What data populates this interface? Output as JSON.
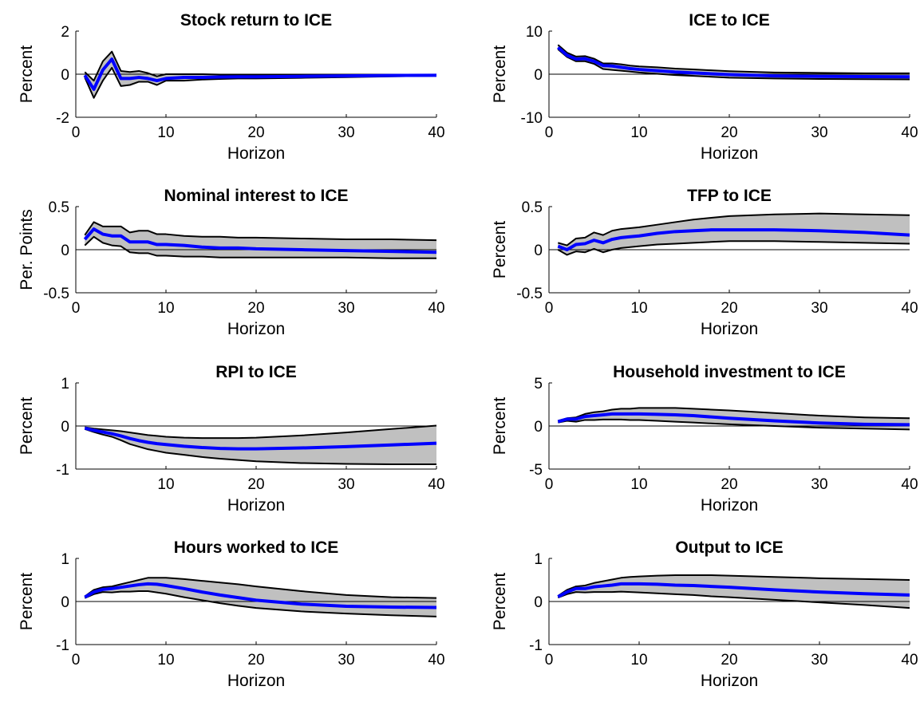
{
  "figure": {
    "background": "#ffffff",
    "band_color": "#c0c0c0",
    "bound_color": "#000000",
    "median_color": "#0000ff",
    "zero_line_color": "#000000"
  },
  "chart_data": [
    {
      "type": "line",
      "title": "Stock return to ICE",
      "xlabel": "Horizon",
      "ylabel": "Percent",
      "xlim": [
        0,
        40
      ],
      "ylim": [
        -2,
        2
      ],
      "xticks": [
        0,
        10,
        20,
        30,
        40
      ],
      "yticks": [
        -2,
        0,
        2
      ],
      "grid": false,
      "x": [
        1,
        2,
        3,
        4,
        5,
        6,
        7,
        8,
        9,
        10,
        12,
        14,
        16,
        18,
        20,
        25,
        30,
        35,
        40
      ],
      "series": [
        {
          "role": "upper",
          "values": [
            0.1,
            -0.3,
            0.6,
            1.05,
            0.15,
            0.1,
            0.15,
            0.05,
            -0.1,
            0.0,
            0.0,
            0.0,
            -0.02,
            -0.02,
            -0.02,
            -0.02,
            -0.02,
            -0.02,
            -0.02
          ]
        },
        {
          "role": "median",
          "values": [
            -0.05,
            -0.7,
            0.2,
            0.7,
            -0.2,
            -0.2,
            -0.15,
            -0.2,
            -0.3,
            -0.2,
            -0.15,
            -0.15,
            -0.13,
            -0.12,
            -0.12,
            -0.1,
            -0.08,
            -0.06,
            -0.05
          ]
        },
        {
          "role": "lower",
          "values": [
            -0.15,
            -1.1,
            -0.3,
            0.3,
            -0.55,
            -0.5,
            -0.35,
            -0.35,
            -0.5,
            -0.3,
            -0.3,
            -0.25,
            -0.22,
            -0.2,
            -0.2,
            -0.17,
            -0.14,
            -0.1,
            -0.08
          ]
        }
      ]
    },
    {
      "type": "line",
      "title": "ICE to ICE",
      "xlabel": "Horizon",
      "ylabel": "Percent",
      "xlim": [
        0,
        40
      ],
      "ylim": [
        -10,
        10
      ],
      "xticks": [
        0,
        10,
        20,
        30,
        40
      ],
      "yticks": [
        -10,
        0,
        10
      ],
      "grid": false,
      "x": [
        1,
        2,
        3,
        4,
        5,
        6,
        7,
        8,
        9,
        10,
        12,
        14,
        16,
        18,
        20,
        25,
        30,
        35,
        40
      ],
      "series": [
        {
          "role": "upper",
          "values": [
            6.8,
            5.0,
            4.1,
            4.2,
            3.6,
            2.5,
            2.5,
            2.3,
            2.0,
            1.8,
            1.6,
            1.3,
            1.1,
            0.9,
            0.7,
            0.4,
            0.3,
            0.2,
            0.2
          ]
        },
        {
          "role": "median",
          "values": [
            6.2,
            4.4,
            3.5,
            3.6,
            3.0,
            2.0,
            1.9,
            1.6,
            1.3,
            1.1,
            0.8,
            0.5,
            0.3,
            0.1,
            -0.1,
            -0.4,
            -0.5,
            -0.55,
            -0.6
          ]
        },
        {
          "role": "lower",
          "values": [
            5.8,
            4.0,
            3.0,
            3.0,
            2.4,
            1.2,
            1.0,
            0.8,
            0.6,
            0.4,
            0.1,
            -0.2,
            -0.4,
            -0.6,
            -0.8,
            -1.0,
            -1.1,
            -1.15,
            -1.2
          ]
        }
      ]
    },
    {
      "type": "line",
      "title": "Nominal interest to ICE",
      "xlabel": "Horizon",
      "ylabel": "Per. Points",
      "xlim": [
        0,
        40
      ],
      "ylim": [
        -0.5,
        0.5
      ],
      "xticks": [
        0,
        10,
        20,
        30,
        40
      ],
      "yticks": [
        -0.5,
        0,
        0.5
      ],
      "grid": false,
      "x": [
        1,
        2,
        3,
        4,
        5,
        6,
        7,
        8,
        9,
        10,
        12,
        14,
        16,
        18,
        20,
        25,
        30,
        35,
        40
      ],
      "series": [
        {
          "role": "upper",
          "values": [
            0.17,
            0.32,
            0.27,
            0.27,
            0.27,
            0.2,
            0.22,
            0.22,
            0.18,
            0.18,
            0.16,
            0.15,
            0.15,
            0.14,
            0.14,
            0.13,
            0.12,
            0.12,
            0.11
          ]
        },
        {
          "role": "median",
          "values": [
            0.12,
            0.24,
            0.18,
            0.16,
            0.16,
            0.09,
            0.09,
            0.09,
            0.06,
            0.06,
            0.05,
            0.03,
            0.02,
            0.02,
            0.01,
            0.0,
            -0.01,
            -0.02,
            -0.03
          ]
        },
        {
          "role": "lower",
          "values": [
            0.05,
            0.15,
            0.08,
            0.05,
            0.04,
            -0.03,
            -0.04,
            -0.04,
            -0.07,
            -0.07,
            -0.08,
            -0.08,
            -0.09,
            -0.09,
            -0.09,
            -0.09,
            -0.09,
            -0.1,
            -0.1
          ]
        }
      ]
    },
    {
      "type": "line",
      "title": "TFP to ICE",
      "xlabel": "Horizon",
      "ylabel": "Percent",
      "xlim": [
        0,
        40
      ],
      "ylim": [
        -0.5,
        0.5
      ],
      "xticks": [
        0,
        10,
        20,
        30,
        40
      ],
      "yticks": [
        -0.5,
        0,
        0.5
      ],
      "grid": false,
      "x": [
        1,
        2,
        3,
        4,
        5,
        6,
        7,
        8,
        9,
        10,
        12,
        14,
        16,
        18,
        20,
        25,
        30,
        35,
        40
      ],
      "series": [
        {
          "role": "upper",
          "values": [
            0.08,
            0.05,
            0.13,
            0.14,
            0.2,
            0.17,
            0.22,
            0.24,
            0.25,
            0.26,
            0.29,
            0.32,
            0.35,
            0.37,
            0.39,
            0.41,
            0.42,
            0.41,
            0.4
          ]
        },
        {
          "role": "median",
          "values": [
            0.04,
            0.0,
            0.06,
            0.07,
            0.11,
            0.08,
            0.12,
            0.14,
            0.15,
            0.16,
            0.19,
            0.21,
            0.22,
            0.23,
            0.23,
            0.23,
            0.22,
            0.2,
            0.17
          ]
        },
        {
          "role": "lower",
          "values": [
            0.0,
            -0.06,
            -0.02,
            -0.03,
            0.01,
            -0.03,
            0.0,
            0.02,
            0.03,
            0.04,
            0.06,
            0.07,
            0.08,
            0.09,
            0.1,
            0.1,
            0.09,
            0.08,
            0.07
          ]
        }
      ]
    },
    {
      "type": "line",
      "title": "RPI to ICE",
      "xlabel": "Horizon",
      "ylabel": "Percent",
      "xlim": [
        0,
        40
      ],
      "ylim": [
        -1,
        1
      ],
      "xticks": [
        10,
        20,
        30,
        40
      ],
      "yticks": [
        -1,
        0,
        1
      ],
      "grid": false,
      "x": [
        1,
        2,
        3,
        4,
        5,
        6,
        7,
        8,
        9,
        10,
        12,
        14,
        16,
        18,
        20,
        25,
        30,
        35,
        40
      ],
      "series": [
        {
          "role": "upper",
          "values": [
            -0.03,
            -0.06,
            -0.08,
            -0.1,
            -0.12,
            -0.15,
            -0.18,
            -0.21,
            -0.23,
            -0.25,
            -0.27,
            -0.28,
            -0.28,
            -0.28,
            -0.27,
            -0.22,
            -0.15,
            -0.07,
            0.01
          ]
        },
        {
          "role": "median",
          "values": [
            -0.05,
            -0.1,
            -0.14,
            -0.18,
            -0.23,
            -0.29,
            -0.34,
            -0.38,
            -0.41,
            -0.43,
            -0.47,
            -0.5,
            -0.52,
            -0.53,
            -0.53,
            -0.51,
            -0.48,
            -0.44,
            -0.4
          ]
        },
        {
          "role": "lower",
          "values": [
            -0.07,
            -0.14,
            -0.2,
            -0.25,
            -0.33,
            -0.42,
            -0.48,
            -0.54,
            -0.58,
            -0.62,
            -0.67,
            -0.72,
            -0.76,
            -0.79,
            -0.82,
            -0.86,
            -0.88,
            -0.89,
            -0.89
          ]
        }
      ]
    },
    {
      "type": "line",
      "title": "Household investment to ICE",
      "xlabel": "Horizon",
      "ylabel": "Percent",
      "xlim": [
        0,
        40
      ],
      "ylim": [
        -5,
        5
      ],
      "xticks": [
        0,
        10,
        20,
        30,
        40
      ],
      "yticks": [
        -5,
        0,
        5
      ],
      "grid": false,
      "x": [
        1,
        2,
        3,
        4,
        5,
        6,
        7,
        8,
        9,
        10,
        12,
        14,
        16,
        18,
        20,
        25,
        30,
        35,
        40
      ],
      "series": [
        {
          "role": "upper",
          "values": [
            0.6,
            0.9,
            1.0,
            1.4,
            1.6,
            1.7,
            1.9,
            2.0,
            2.0,
            2.1,
            2.1,
            2.1,
            2.0,
            1.9,
            1.8,
            1.5,
            1.2,
            1.0,
            0.9
          ]
        },
        {
          "role": "median",
          "values": [
            0.5,
            0.8,
            0.8,
            1.1,
            1.2,
            1.3,
            1.4,
            1.4,
            1.4,
            1.4,
            1.35,
            1.3,
            1.2,
            1.05,
            0.9,
            0.6,
            0.35,
            0.2,
            0.15
          ]
        },
        {
          "role": "lower",
          "values": [
            0.4,
            0.6,
            0.5,
            0.7,
            0.7,
            0.75,
            0.75,
            0.75,
            0.7,
            0.7,
            0.6,
            0.5,
            0.4,
            0.3,
            0.2,
            0.0,
            -0.2,
            -0.3,
            -0.4
          ]
        }
      ]
    },
    {
      "type": "line",
      "title": "Hours worked to ICE",
      "xlabel": "Horizon",
      "ylabel": "Percent",
      "xlim": [
        0,
        40
      ],
      "ylim": [
        -1,
        1
      ],
      "xticks": [
        0,
        10,
        20,
        30,
        40
      ],
      "yticks": [
        -1,
        0,
        1
      ],
      "grid": false,
      "x": [
        1,
        2,
        3,
        4,
        5,
        6,
        7,
        8,
        9,
        10,
        12,
        14,
        16,
        18,
        20,
        25,
        30,
        35,
        40
      ],
      "series": [
        {
          "role": "upper",
          "values": [
            0.12,
            0.27,
            0.33,
            0.35,
            0.4,
            0.45,
            0.5,
            0.55,
            0.55,
            0.55,
            0.52,
            0.48,
            0.44,
            0.4,
            0.35,
            0.24,
            0.15,
            0.1,
            0.08
          ]
        },
        {
          "role": "median",
          "values": [
            0.1,
            0.22,
            0.28,
            0.3,
            0.33,
            0.36,
            0.39,
            0.41,
            0.4,
            0.37,
            0.3,
            0.22,
            0.15,
            0.09,
            0.03,
            -0.06,
            -0.11,
            -0.13,
            -0.14
          ]
        },
        {
          "role": "lower",
          "values": [
            0.08,
            0.17,
            0.22,
            0.21,
            0.23,
            0.23,
            0.24,
            0.24,
            0.21,
            0.18,
            0.1,
            0.03,
            -0.04,
            -0.1,
            -0.15,
            -0.23,
            -0.28,
            -0.32,
            -0.35
          ]
        }
      ]
    },
    {
      "type": "line",
      "title": "Output to ICE",
      "xlabel": "Horizon",
      "ylabel": "Percent",
      "xlim": [
        0,
        40
      ],
      "ylim": [
        -1,
        1
      ],
      "xticks": [
        0,
        10,
        20,
        30,
        40
      ],
      "yticks": [
        -1,
        0,
        1
      ],
      "grid": false,
      "x": [
        1,
        2,
        3,
        4,
        5,
        6,
        7,
        8,
        9,
        10,
        12,
        14,
        16,
        18,
        20,
        25,
        30,
        35,
        40
      ],
      "series": [
        {
          "role": "upper",
          "values": [
            0.13,
            0.27,
            0.35,
            0.37,
            0.43,
            0.47,
            0.51,
            0.55,
            0.57,
            0.58,
            0.6,
            0.61,
            0.61,
            0.61,
            0.6,
            0.57,
            0.54,
            0.52,
            0.5
          ]
        },
        {
          "role": "median",
          "values": [
            0.11,
            0.22,
            0.3,
            0.3,
            0.34,
            0.36,
            0.38,
            0.41,
            0.41,
            0.41,
            0.4,
            0.38,
            0.37,
            0.35,
            0.33,
            0.27,
            0.22,
            0.18,
            0.15
          ]
        },
        {
          "role": "lower",
          "values": [
            0.09,
            0.17,
            0.22,
            0.21,
            0.22,
            0.22,
            0.22,
            0.23,
            0.22,
            0.21,
            0.19,
            0.17,
            0.15,
            0.12,
            0.1,
            0.04,
            -0.02,
            -0.08,
            -0.15
          ]
        }
      ]
    }
  ]
}
